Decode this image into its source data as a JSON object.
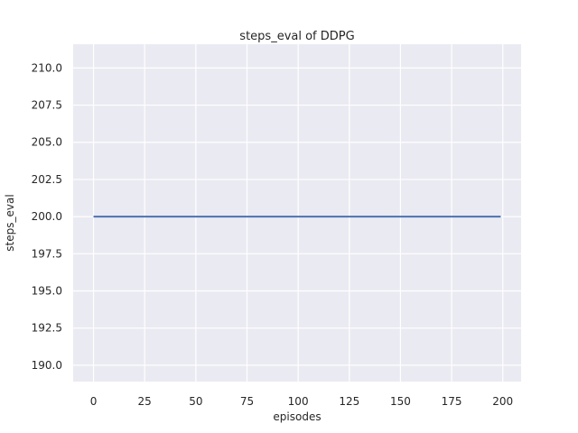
{
  "chart_data": {
    "type": "line",
    "title": "steps_eval of DDPG",
    "xlabel": "episodes",
    "ylabel": "steps_eval",
    "xlim": [
      -9.95,
      208.95
    ],
    "ylim": [
      188.9,
      211.6
    ],
    "xticks": [
      0,
      25,
      50,
      75,
      100,
      125,
      150,
      175,
      200
    ],
    "xtick_labels": [
      "0",
      "25",
      "50",
      "75",
      "100",
      "125",
      "150",
      "175",
      "200"
    ],
    "yticks": [
      190.0,
      192.5,
      195.0,
      197.5,
      200.0,
      202.5,
      205.0,
      207.5,
      210.0
    ],
    "ytick_labels": [
      "190.0",
      "192.5",
      "195.0",
      "197.5",
      "200.0",
      "202.5",
      "205.0",
      "207.5",
      "210.0"
    ],
    "grid": true,
    "legend_position": "none",
    "series": [
      {
        "name": "steps_eval",
        "x": [
          0,
          199
        ],
        "y": [
          200.0,
          200.0
        ],
        "color": "#4c72b0",
        "line_width": 2
      }
    ],
    "colors": {
      "figure_bg": "#ffffff",
      "plot_bg": "#eaeaf2",
      "grid": "#ffffff",
      "text": "#262626"
    }
  }
}
